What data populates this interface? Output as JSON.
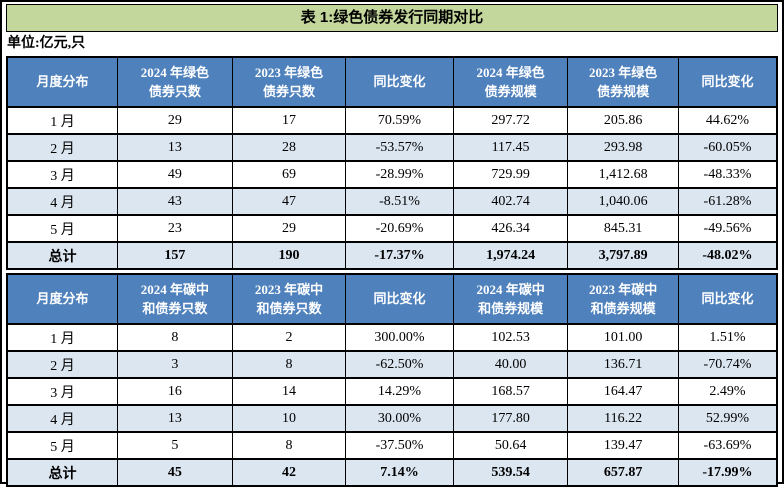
{
  "page": {
    "title": "表 1:绿色债券发行同期对比",
    "unit_note": "单位:亿元,只"
  },
  "colors": {
    "title_bg": "#C3D69B",
    "header_bg": "#4F81BD",
    "header_text": "#FFFFFF",
    "alt_row_bg": "#DCE6F1",
    "border": "#000000"
  },
  "tables": [
    {
      "name": "绿色债券同期对比",
      "headers": [
        "月度分布",
        "2024 年绿色\n债券只数",
        "2023 年绿色\n债券只数",
        "同比变化",
        "2024 年绿色\n债券规模",
        "2023 年绿色\n债券规模",
        "同比变化"
      ],
      "rows": [
        [
          "1 月",
          "29",
          "17",
          "70.59%",
          "297.72",
          "205.86",
          "44.62%"
        ],
        [
          "2 月",
          "13",
          "28",
          "-53.57%",
          "117.45",
          "293.98",
          "-60.05%"
        ],
        [
          "3 月",
          "49",
          "69",
          "-28.99%",
          "729.99",
          "1,412.68",
          "-48.33%"
        ],
        [
          "4 月",
          "43",
          "47",
          "-8.51%",
          "402.74",
          "1,040.06",
          "-61.28%"
        ],
        [
          "5 月",
          "23",
          "29",
          "-20.69%",
          "426.34",
          "845.31",
          "-49.56%"
        ],
        [
          "总计",
          "157",
          "190",
          "-17.37%",
          "1,974.24",
          "3,797.89",
          "-48.02%"
        ]
      ]
    },
    {
      "name": "碳中和债券同期对比",
      "headers": [
        "月度分布",
        "2024 年碳中\n和债券只数",
        "2023 年碳中\n和债券只数",
        "同比变化",
        "2024 年碳中\n和债券规模",
        "2023 年碳中\n和债券规模",
        "同比变化"
      ],
      "rows": [
        [
          "1 月",
          "8",
          "2",
          "300.00%",
          "102.53",
          "101.00",
          "1.51%"
        ],
        [
          "2 月",
          "3",
          "8",
          "-62.50%",
          "40.00",
          "136.71",
          "-70.74%"
        ],
        [
          "3 月",
          "16",
          "14",
          "14.29%",
          "168.57",
          "164.47",
          "2.49%"
        ],
        [
          "4 月",
          "13",
          "10",
          "30.00%",
          "177.80",
          "116.22",
          "52.99%"
        ],
        [
          "5 月",
          "5",
          "8",
          "-37.50%",
          "50.64",
          "139.47",
          "-63.69%"
        ],
        [
          "总计",
          "45",
          "42",
          "7.14%",
          "539.54",
          "657.87",
          "-17.99%"
        ]
      ]
    }
  ]
}
